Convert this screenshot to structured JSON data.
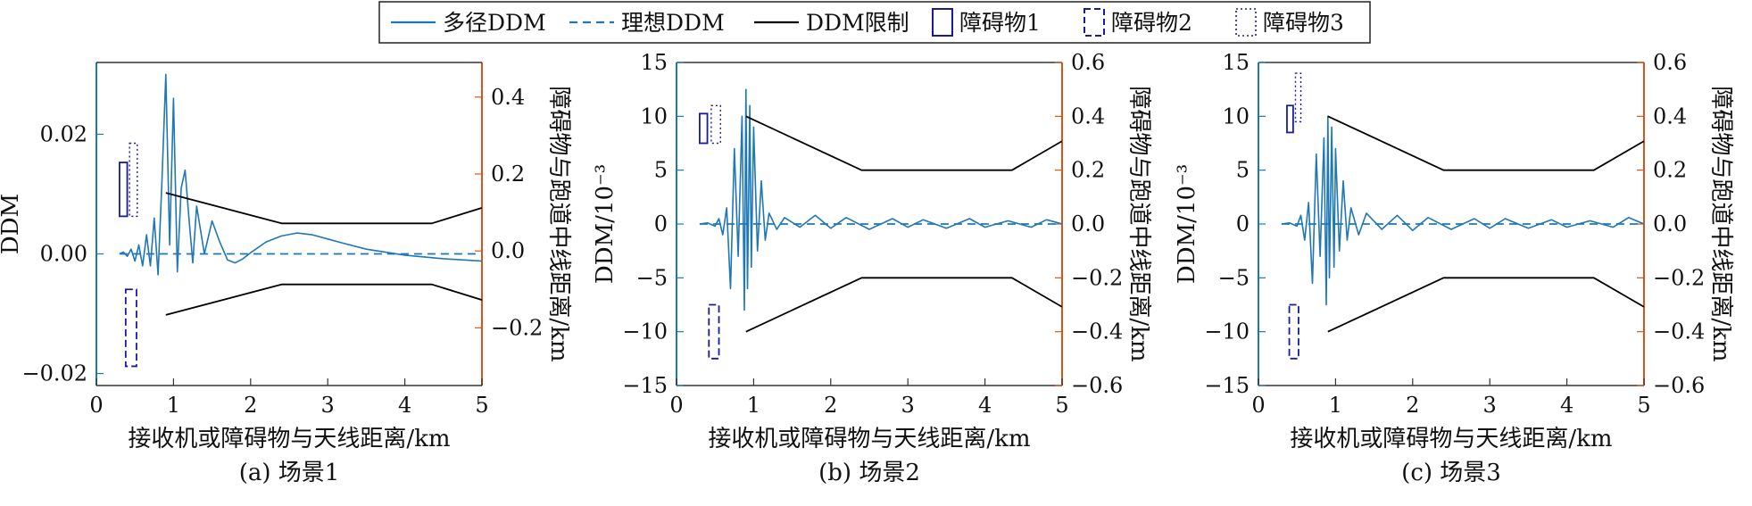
{
  "legend": {
    "items": [
      {
        "label": "多径DDM",
        "style": "solid",
        "color": "#1f77b4"
      },
      {
        "label": "理想DDM",
        "style": "dashed",
        "color": "#1f77b4"
      },
      {
        "label": "DDM限制",
        "style": "solid",
        "color": "#000000"
      },
      {
        "label": "障碍物1",
        "style": "box-solid",
        "color": "#1a1aa0"
      },
      {
        "label": "障碍物2",
        "style": "box-dashed",
        "color": "#1a1aa0"
      },
      {
        "label": "障碍物3",
        "style": "box-dotted",
        "color": "#1a1aa0"
      }
    ]
  },
  "colors": {
    "multipath": "#1f77b4",
    "ideal": "#1f77b4",
    "limit": "#000000",
    "obstacle": "#1a1aa0",
    "left_axis": "#1f77b4",
    "right_axis": "#d9541a"
  },
  "chart_data": [
    {
      "type": "line",
      "caption": "(a) 场景1",
      "xlabel": "接收机或障碍物与天线距离/km",
      "ylabel": "DDM",
      "y2label": "障碍物与跑道中线距离/km",
      "xlim": [
        0,
        5
      ],
      "ylim": [
        -0.022,
        0.032
      ],
      "y2lim": [
        -0.35,
        0.49
      ],
      "xticks": [
        0,
        1,
        2,
        3,
        4,
        5
      ],
      "xtick_labels": [
        "0",
        "1",
        "2",
        "3",
        "4",
        "5"
      ],
      "yticks": [
        -0.02,
        0.0,
        0.02
      ],
      "ytick_labels": [
        "−0.02",
        "0.00",
        "0.02"
      ],
      "y2ticks": [
        -0.2,
        0.0,
        0.2,
        0.4
      ],
      "y2tick_labels": [
        "−0.2",
        "0.0",
        "0.2",
        "0.4"
      ],
      "series": [
        {
          "name": "多径DDM",
          "kind": "multipath",
          "x": [
            0.3,
            0.35,
            0.4,
            0.45,
            0.5,
            0.55,
            0.6,
            0.65,
            0.7,
            0.75,
            0.8,
            0.85,
            0.9,
            0.95,
            1.0,
            1.05,
            1.1,
            1.15,
            1.2,
            1.25,
            1.3,
            1.4,
            1.5,
            1.6,
            1.7,
            1.8,
            1.9,
            2.0,
            2.2,
            2.4,
            2.6,
            2.8,
            3.0,
            3.2,
            3.5,
            4.0,
            4.5,
            5.0
          ],
          "y": [
            0.0,
            0.0003,
            -0.0004,
            0.0008,
            -0.0012,
            0.0015,
            -0.002,
            0.0032,
            -0.002,
            0.006,
            -0.0035,
            0.012,
            0.03,
            0.0015,
            0.026,
            -0.003,
            0.011,
            0.014,
            0.006,
            -0.0015,
            0.008,
            0.0,
            0.0055,
            0.002,
            -0.001,
            -0.0015,
            -0.0008,
            0.0002,
            0.002,
            0.003,
            0.0035,
            0.0032,
            0.0025,
            0.0018,
            0.0008,
            -0.0002,
            -0.0008,
            -0.0012
          ]
        },
        {
          "name": "理想DDM",
          "kind": "ideal",
          "x": [
            0.3,
            5.0
          ],
          "y": [
            0.0,
            0.0
          ]
        },
        {
          "name": "DDM限制",
          "kind": "limit",
          "x": [
            0.9,
            2.4,
            4.35,
            5.0
          ],
          "y": [
            0.0102,
            0.0051,
            0.0051,
            0.0077
          ]
        },
        {
          "name": "DDM限制",
          "kind": "limit",
          "x": [
            0.9,
            2.4,
            4.35,
            5.0
          ],
          "y": [
            -0.0102,
            -0.0051,
            -0.0051,
            -0.0077
          ]
        }
      ],
      "obstacles": [
        {
          "name": "障碍物1",
          "style": "solid",
          "x": [
            0.3,
            0.4
          ],
          "y2": [
            0.09,
            0.23
          ]
        },
        {
          "name": "障碍物3",
          "style": "dotted",
          "x": [
            0.43,
            0.53
          ],
          "y2": [
            0.09,
            0.28
          ]
        },
        {
          "name": "障碍物2",
          "style": "dashed",
          "x": [
            0.38,
            0.52
          ],
          "y2": [
            -0.3,
            -0.1
          ]
        }
      ]
    },
    {
      "type": "line",
      "caption": "(b) 场景2",
      "xlabel": "接收机或障碍物与天线距离/km",
      "ylabel": "DDM/10⁻³",
      "y2label": "障碍物与跑道中线距离/km",
      "xlim": [
        0,
        5
      ],
      "ylim": [
        -15,
        15
      ],
      "y2lim": [
        -0.6,
        0.6
      ],
      "xticks": [
        0,
        1,
        2,
        3,
        4,
        5
      ],
      "xtick_labels": [
        "0",
        "1",
        "2",
        "3",
        "4",
        "5"
      ],
      "yticks": [
        -15,
        -10,
        -5,
        0,
        5,
        10,
        15
      ],
      "ytick_labels": [
        "−15",
        "−10",
        "−5",
        "0",
        "5",
        "10",
        "15"
      ],
      "y2ticks": [
        -0.6,
        -0.4,
        -0.2,
        0.0,
        0.2,
        0.4,
        0.6
      ],
      "y2tick_labels": [
        "−0.6",
        "−0.4",
        "−0.2",
        "0.0",
        "0.2",
        "0.4",
        "0.6"
      ],
      "series": [
        {
          "name": "多径DDM",
          "kind": "multipath",
          "x": [
            0.3,
            0.4,
            0.5,
            0.55,
            0.6,
            0.65,
            0.7,
            0.75,
            0.8,
            0.85,
            0.88,
            0.9,
            0.92,
            0.95,
            0.97,
            1.0,
            1.05,
            1.1,
            1.15,
            1.2,
            1.3,
            1.4,
            1.6,
            1.8,
            2.0,
            2.2,
            2.5,
            2.8,
            3.0,
            3.2,
            3.5,
            3.8,
            4.0,
            4.3,
            4.6,
            4.8,
            5.0
          ],
          "y": [
            0.0,
            0.1,
            -0.2,
            0.5,
            -1.0,
            1.5,
            -6.0,
            7.0,
            -3.0,
            10.0,
            -8.0,
            12.5,
            -6.0,
            11.0,
            -4.0,
            9.0,
            -2.5,
            4.0,
            -1.5,
            1.0,
            -0.5,
            0.6,
            -0.3,
            0.8,
            -0.4,
            0.6,
            -0.5,
            0.5,
            -0.3,
            0.4,
            -0.4,
            0.5,
            -0.3,
            0.3,
            -0.3,
            0.4,
            0.0
          ]
        },
        {
          "name": "理想DDM",
          "kind": "ideal",
          "x": [
            0.3,
            5.0
          ],
          "y": [
            0.0,
            0.0
          ]
        },
        {
          "name": "DDM限制",
          "kind": "limit",
          "x": [
            0.9,
            2.4,
            4.35,
            5.0
          ],
          "y": [
            10,
            5,
            5,
            7.7
          ]
        },
        {
          "name": "DDM限制",
          "kind": "limit",
          "x": [
            0.9,
            2.4,
            4.35,
            5.0
          ],
          "y": [
            -10,
            -5,
            -5,
            -7.7
          ]
        }
      ],
      "obstacles": [
        {
          "name": "障碍物1",
          "style": "solid",
          "x": [
            0.3,
            0.4
          ],
          "y2": [
            0.3,
            0.41
          ]
        },
        {
          "name": "障碍物3",
          "style": "dotted",
          "x": [
            0.45,
            0.57
          ],
          "y2": [
            0.3,
            0.44
          ]
        },
        {
          "name": "障碍物2",
          "style": "dashed",
          "x": [
            0.42,
            0.55
          ],
          "y2": [
            -0.5,
            -0.3
          ]
        }
      ]
    },
    {
      "type": "line",
      "caption": "(c) 场景3",
      "xlabel": "接收机或障碍物与天线距离/km",
      "ylabel": "DDM/10⁻³",
      "y2label": "障碍物与跑道中线距离/km",
      "xlim": [
        0,
        5
      ],
      "ylim": [
        -15,
        15
      ],
      "y2lim": [
        -0.6,
        0.6
      ],
      "xticks": [
        0,
        1,
        2,
        3,
        4,
        5
      ],
      "xtick_labels": [
        "0",
        "1",
        "2",
        "3",
        "4",
        "5"
      ],
      "yticks": [
        -15,
        -10,
        -5,
        0,
        5,
        10,
        15
      ],
      "ytick_labels": [
        "−15",
        "−10",
        "−5",
        "0",
        "5",
        "10",
        "15"
      ],
      "y2ticks": [
        -0.6,
        -0.4,
        -0.2,
        0.0,
        0.2,
        0.4,
        0.6
      ],
      "y2tick_labels": [
        "−0.6",
        "−0.4",
        "−0.2",
        "0.0",
        "0.2",
        "0.4",
        "0.6"
      ],
      "series": [
        {
          "name": "多径DDM",
          "kind": "multipath",
          "x": [
            0.3,
            0.4,
            0.5,
            0.55,
            0.6,
            0.65,
            0.7,
            0.75,
            0.8,
            0.85,
            0.88,
            0.9,
            0.92,
            0.95,
            0.98,
            1.0,
            1.05,
            1.1,
            1.15,
            1.2,
            1.3,
            1.4,
            1.6,
            1.8,
            2.0,
            2.2,
            2.5,
            2.8,
            3.0,
            3.2,
            3.5,
            3.8,
            4.0,
            4.3,
            4.6,
            4.8,
            5.0
          ],
          "y": [
            0.0,
            0.1,
            -0.2,
            0.8,
            -1.5,
            2.0,
            -5.5,
            6.5,
            -3.0,
            8.0,
            -7.5,
            10.0,
            -5.0,
            9.0,
            -4.0,
            7.0,
            -2.5,
            4.0,
            -1.5,
            1.5,
            -1.0,
            1.0,
            -0.5,
            0.8,
            -0.6,
            0.6,
            -0.5,
            0.5,
            -0.4,
            0.5,
            -0.4,
            0.4,
            -0.3,
            0.3,
            -0.3,
            0.6,
            0.0
          ]
        },
        {
          "name": "理想DDM",
          "kind": "ideal",
          "x": [
            0.3,
            5.0
          ],
          "y": [
            0.0,
            0.0
          ]
        },
        {
          "name": "DDM限制",
          "kind": "limit",
          "x": [
            0.9,
            2.4,
            4.35,
            5.0
          ],
          "y": [
            10,
            5,
            5,
            7.7
          ]
        },
        {
          "name": "DDM限制",
          "kind": "limit",
          "x": [
            0.9,
            2.4,
            4.35,
            5.0
          ],
          "y": [
            -10,
            -5,
            -5,
            -7.7
          ]
        }
      ],
      "obstacles": [
        {
          "name": "障碍物1",
          "style": "solid",
          "x": [
            0.37,
            0.45
          ],
          "y2": [
            0.34,
            0.44
          ]
        },
        {
          "name": "障碍物3",
          "style": "dotted",
          "x": [
            0.48,
            0.55
          ],
          "y2": [
            0.38,
            0.56
          ]
        },
        {
          "name": "障碍物2",
          "style": "dashed",
          "x": [
            0.4,
            0.52
          ],
          "y2": [
            -0.5,
            -0.3
          ]
        }
      ]
    }
  ]
}
